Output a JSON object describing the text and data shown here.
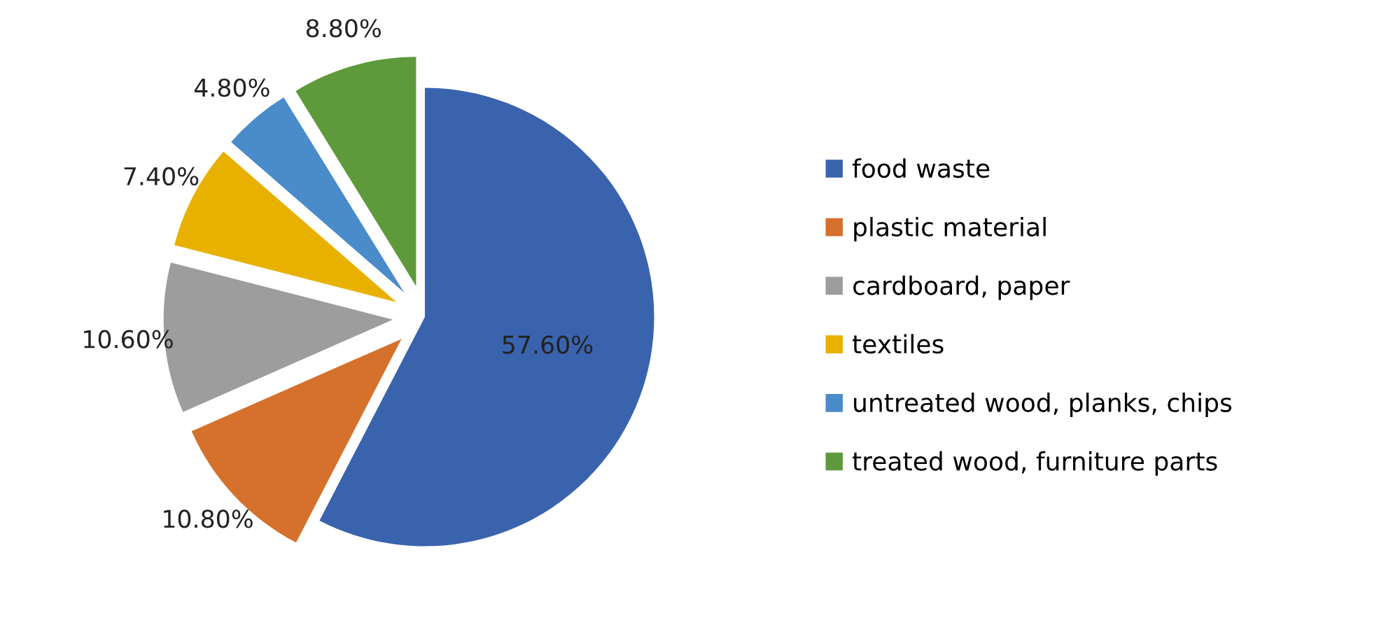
{
  "chart_data": {
    "type": "pie",
    "categories": [
      "food waste",
      "plastic material",
      "cardboard, paper",
      "textiles",
      "untreated wood, planks, chips",
      "treated wood, furniture parts"
    ],
    "values": [
      57.6,
      10.8,
      10.6,
      7.4,
      4.8,
      8.8
    ],
    "value_labels": [
      "57.60%",
      "10.80%",
      "10.60%",
      "7.40%",
      "4.80%",
      "8.80%"
    ],
    "colors": [
      "#3a63ae",
      "#d5712c",
      "#9d9d9d",
      "#e8b100",
      "#4a8bc9",
      "#5e9a3c"
    ],
    "legend": "right"
  }
}
